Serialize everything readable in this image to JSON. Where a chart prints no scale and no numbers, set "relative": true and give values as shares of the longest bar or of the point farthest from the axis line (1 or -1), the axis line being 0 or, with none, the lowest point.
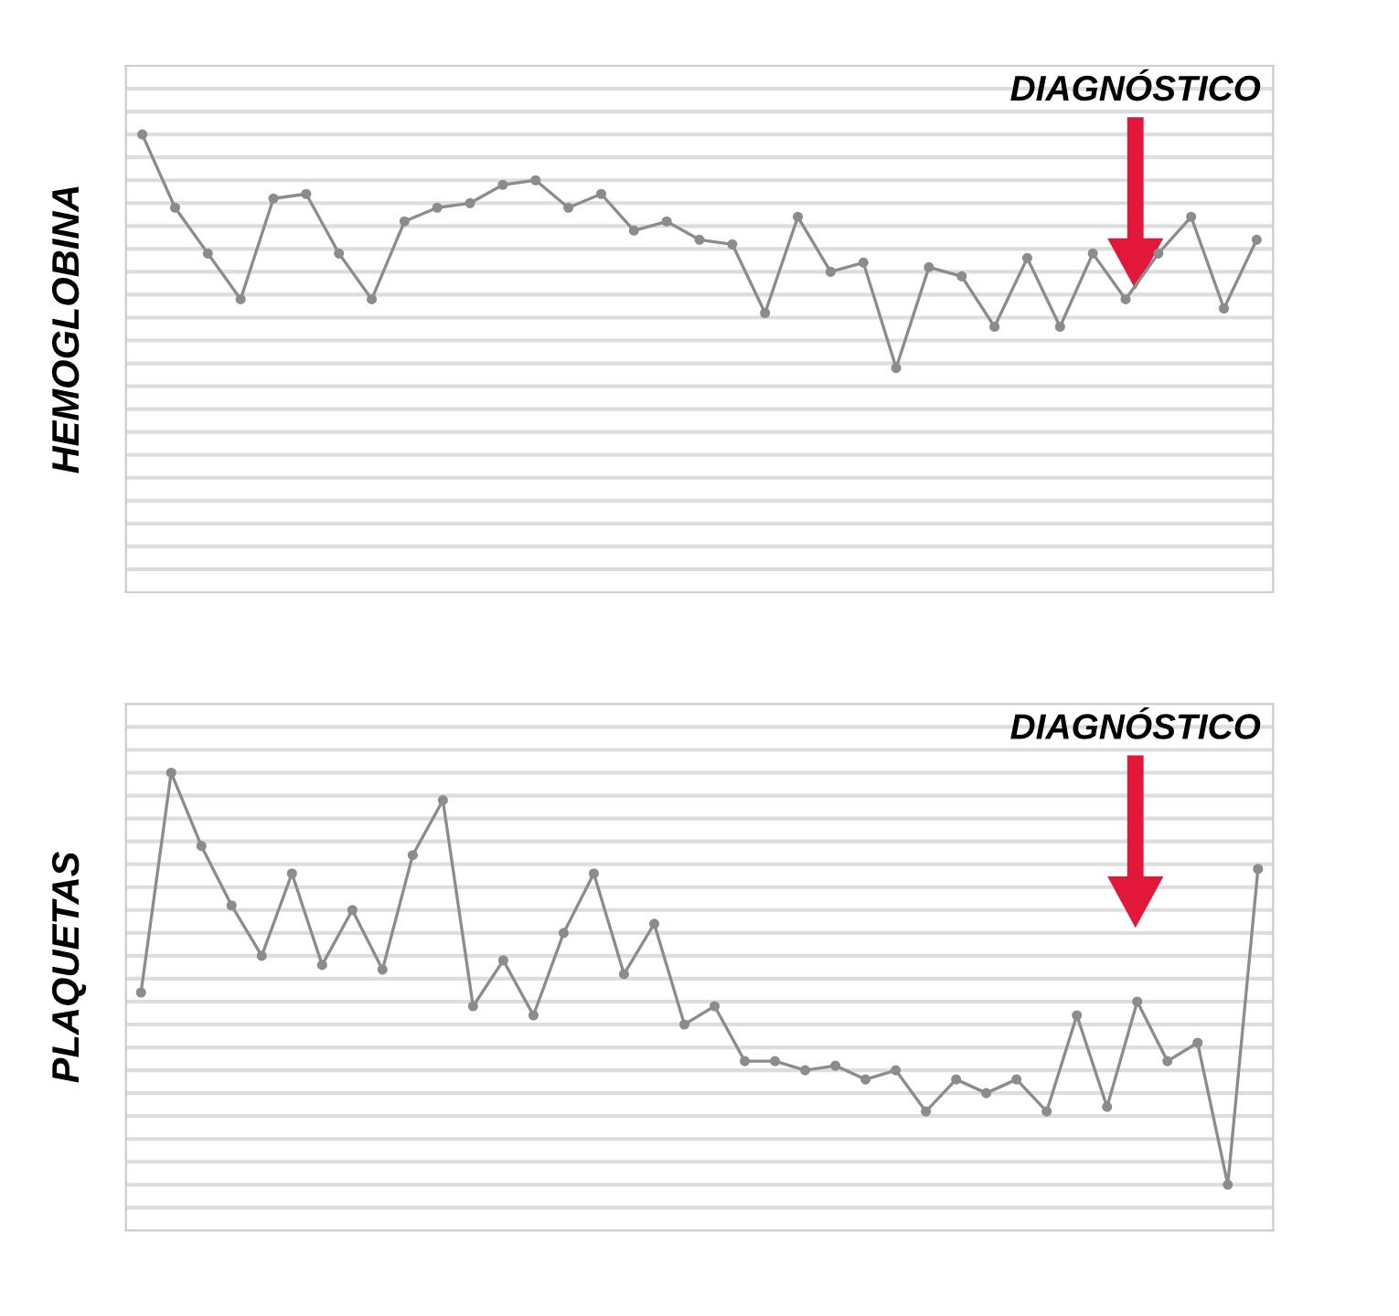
{
  "chart_data": [
    {
      "type": "line",
      "ylabel": "HEMOGLOBINA",
      "relative": true,
      "grid": "y",
      "marker": "circle",
      "line_style": "solid",
      "annotations": [
        "DIAGNÓSTICO"
      ],
      "categories": [
        null,
        null,
        null,
        null,
        null,
        null,
        null,
        null,
        null,
        null,
        null,
        null,
        null,
        null,
        null,
        null,
        null,
        null,
        null,
        null,
        null,
        null,
        null,
        null,
        null,
        null,
        null,
        null,
        null,
        null,
        null,
        null,
        null,
        null,
        null
      ],
      "series": [
        {
          "color": "#8c8c8c",
          "values": [
            1.0,
            0.84,
            0.74,
            0.64,
            0.86,
            0.87,
            0.74,
            0.64,
            0.81,
            0.84,
            0.85,
            0.89,
            0.9,
            0.84,
            0.87,
            0.79,
            0.81,
            0.77,
            0.76,
            0.61,
            0.82,
            0.7,
            0.72,
            0.49,
            0.71,
            0.69,
            0.58,
            0.73,
            0.58,
            0.74,
            0.64,
            0.74,
            0.82,
            0.62,
            0.77
          ]
        }
      ]
    },
    {
      "type": "line",
      "ylabel": "PLAQUETAS",
      "relative": true,
      "grid": "y",
      "marker": "circle",
      "line_style": "solid",
      "annotations": [
        "DIAGNÓSTICO"
      ],
      "categories": [
        null,
        null,
        null,
        null,
        null,
        null,
        null,
        null,
        null,
        null,
        null,
        null,
        null,
        null,
        null,
        null,
        null,
        null,
        null,
        null,
        null,
        null,
        null,
        null,
        null,
        null,
        null,
        null,
        null,
        null,
        null,
        null,
        null,
        null,
        null,
        null,
        null,
        null
      ],
      "series": [
        {
          "color": "#8c8c8c",
          "values": [
            0.52,
            1.0,
            0.84,
            0.71,
            0.6,
            0.78,
            0.58,
            0.7,
            0.57,
            0.82,
            0.94,
            0.49,
            0.59,
            0.47,
            0.65,
            0.78,
            0.56,
            0.67,
            0.45,
            0.49,
            0.37,
            0.37,
            0.35,
            0.36,
            0.33,
            0.35,
            0.26,
            0.33,
            0.3,
            0.33,
            0.26,
            0.47,
            0.27,
            0.5,
            0.37,
            0.41,
            0.1,
            0.79
          ]
        }
      ]
    }
  ]
}
